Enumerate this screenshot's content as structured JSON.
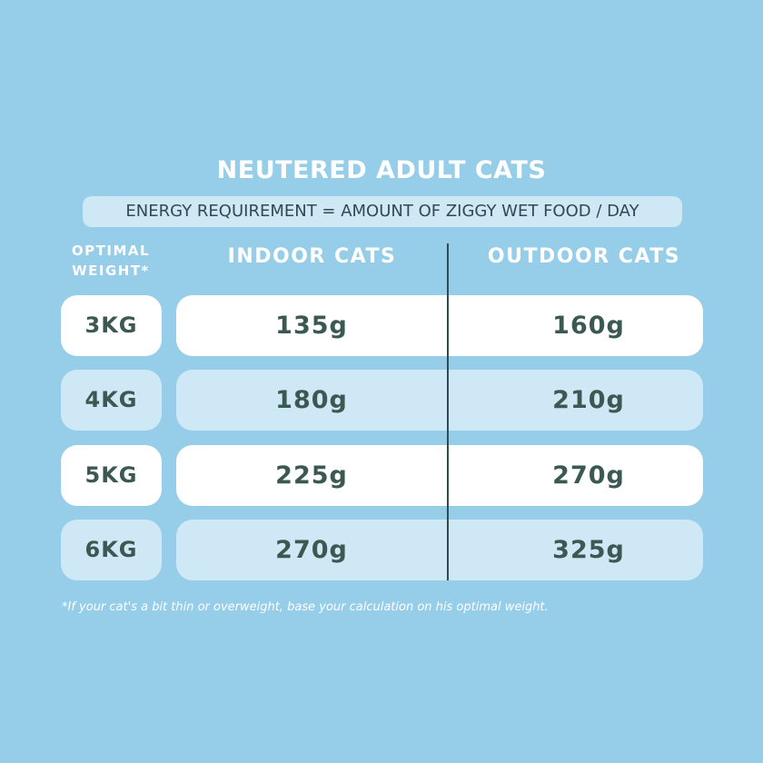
{
  "header": {
    "title": "NEUTERED ADULT CATS",
    "subtitle": "ENERGY REQUIREMENT = AMOUNT OF ZIGGY WET FOOD / DAY"
  },
  "table": {
    "columns": [
      "OPTIMAL WEIGHT*",
      "INDOOR CATS",
      "OUTDOOR CATS"
    ],
    "rows": [
      [
        "3KG",
        "135g",
        "160g"
      ],
      [
        "4KG",
        "180g",
        "210g"
      ],
      [
        "5KG",
        "225g",
        "270g"
      ],
      [
        "6KG",
        "270g",
        "325g"
      ]
    ]
  },
  "footnote": "*If your cat's a bit thin or overweight, base your calculation on his optimal weight."
}
